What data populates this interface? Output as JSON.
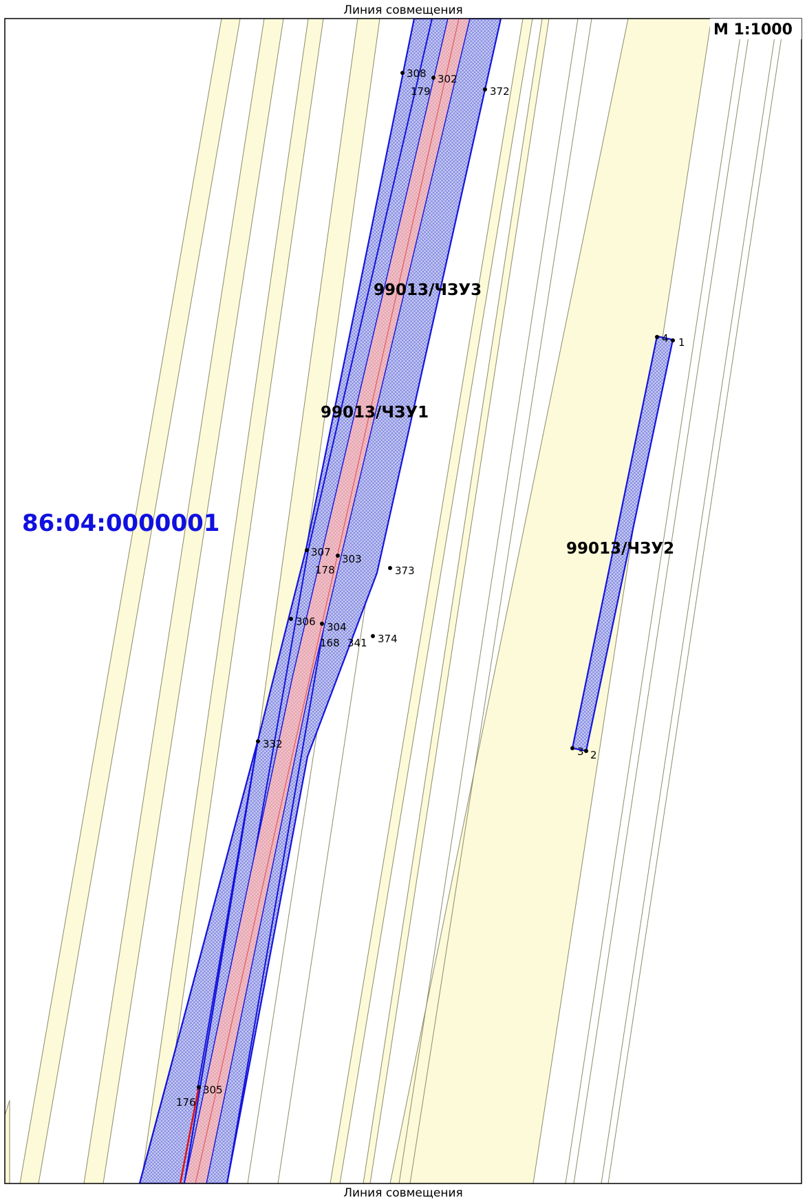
{
  "map": {
    "top_label": "Линия совмещения",
    "bottom_label": "Линия совмещения",
    "scale": "М 1:1000",
    "quarter": "86:04:0000001",
    "parts": [
      {
        "key": "chzu3",
        "label": "99013/ЧЗУ3"
      },
      {
        "key": "chzu1",
        "label": "99013/ЧЗУ1"
      },
      {
        "key": "chzu2",
        "label": "99013/ЧЗУ2"
      }
    ],
    "points": [
      {
        "key": "p308",
        "label": "308"
      },
      {
        "key": "p302",
        "label": "302"
      },
      {
        "key": "p179",
        "label": "179"
      },
      {
        "key": "p372",
        "label": "372"
      },
      {
        "key": "p307",
        "label": "307"
      },
      {
        "key": "p303",
        "label": "303"
      },
      {
        "key": "p178",
        "label": "178"
      },
      {
        "key": "p373",
        "label": "373"
      },
      {
        "key": "p306",
        "label": "306"
      },
      {
        "key": "p304",
        "label": "304"
      },
      {
        "key": "p168",
        "label": "168"
      },
      {
        "key": "p341",
        "label": "341"
      },
      {
        "key": "p374",
        "label": "374"
      },
      {
        "key": "p332",
        "label": "332"
      },
      {
        "key": "p305",
        "label": "305"
      },
      {
        "key": "p176",
        "label": "176"
      },
      {
        "key": "p4",
        "label": "4"
      },
      {
        "key": "p1",
        "label": "1"
      },
      {
        "key": "p3",
        "label": "3"
      },
      {
        "key": "p2",
        "label": "2"
      }
    ],
    "colors": {
      "strip_fill": "#fcfad8",
      "strip_edge": "#8a8a6a",
      "zone_fill": "#c4c8f2",
      "zone_edge": "#1414dc",
      "axis_fill": "#f4c0c4",
      "axis_line": "#e01010",
      "quarter_text": "#1010e0"
    }
  }
}
